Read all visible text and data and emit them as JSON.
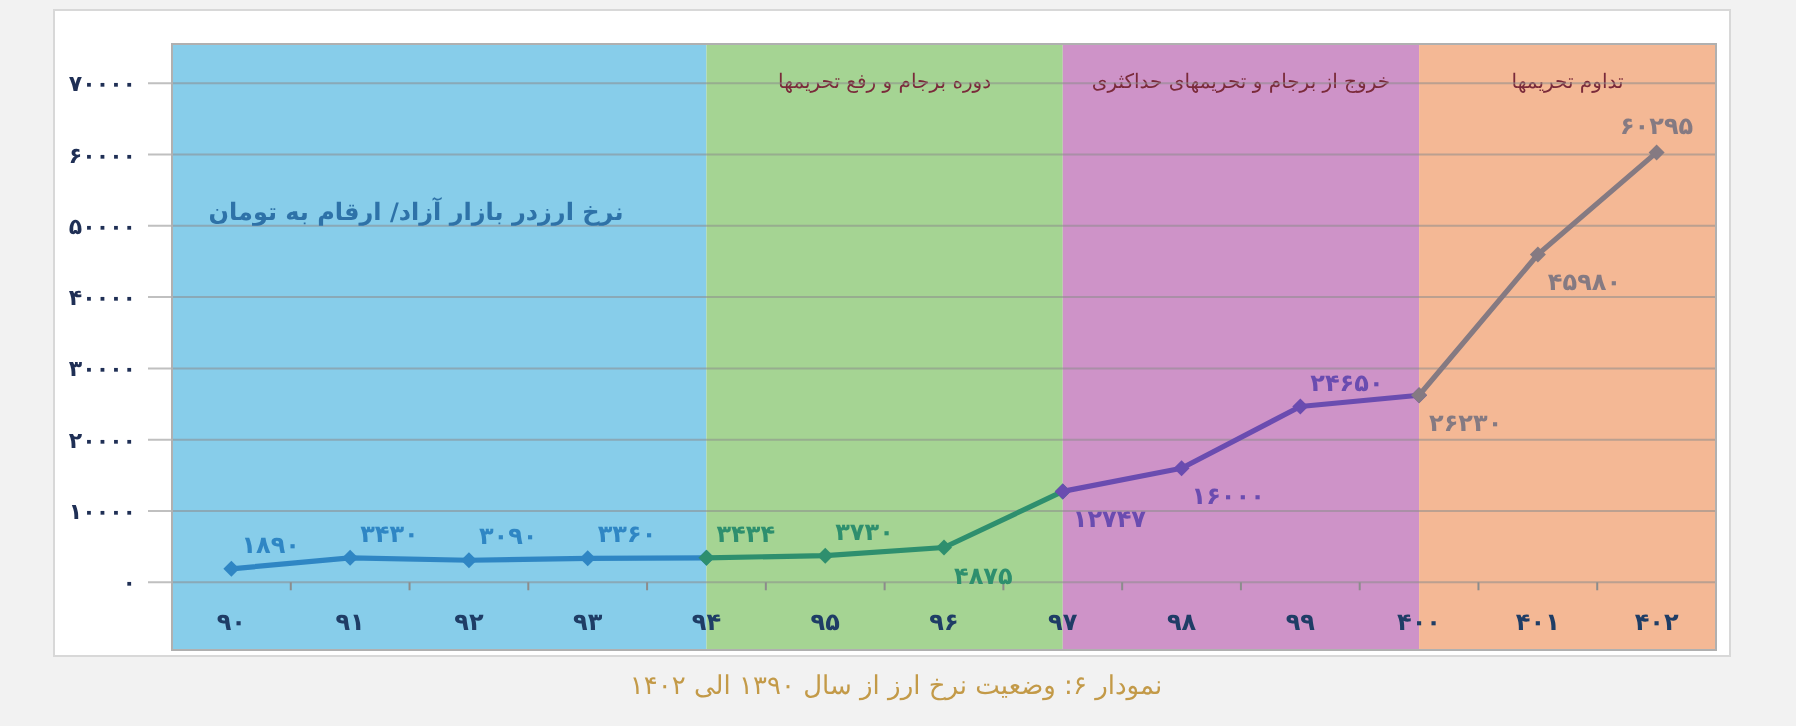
{
  "chart_data": {
    "type": "line",
    "categories": [
      "۹۰",
      "۹۱",
      "۹۲",
      "۹۳",
      "۹۴",
      "۹۵",
      "۹۶",
      "۹۷",
      "۹۸",
      "۹۹",
      "۴۰۰",
      "۴۰۱",
      "۴۰۲"
    ],
    "series": [
      {
        "color": "#2f86c4",
        "x": [
          "۹۰",
          "۹۱",
          "۹۲",
          "۹۳",
          "۹۴"
        ],
        "values": [
          1890,
          3430,
          3090,
          3360,
          3434
        ],
        "value_labels": [
          "۱۸۹۰",
          "۳۴۳۰",
          "۳۰۹۰",
          "۳۳۶۰",
          null
        ]
      },
      {
        "color": "#2e8f6e",
        "x": [
          "۹۴",
          "۹۵",
          "۹۶",
          "۹۷"
        ],
        "values": [
          3434,
          3730,
          4875,
          12747
        ],
        "value_labels": [
          "۳۴۳۴",
          "۳۷۳۰",
          "۴۸۷۵",
          null
        ]
      },
      {
        "color": "#6a4cb0",
        "x": [
          "۹۷",
          "۹۸",
          "۹۹",
          "۴۰۰"
        ],
        "values": [
          12747,
          16000,
          24650,
          26230
        ],
        "value_labels": [
          "۱۲۷۴۷",
          "۱۶۰۰۰",
          "۲۴۶۵۰",
          null
        ]
      },
      {
        "color": "#857a82",
        "x": [
          "۴۰۰",
          "۴۰۱",
          "۴۰۲"
        ],
        "values": [
          26230,
          45980,
          60295
        ],
        "value_labels": [
          "۲۶۲۳۰",
          "۴۵۹۸۰",
          "۶۰۲۹۵"
        ]
      }
    ],
    "ylim": [
      -9500,
      75500
    ],
    "yticks": [
      {
        "value": 0,
        "label": "۰"
      },
      {
        "value": 10000,
        "label": "۱۰۰۰۰"
      },
      {
        "value": 20000,
        "label": "۲۰۰۰۰"
      },
      {
        "value": 30000,
        "label": "۳۰۰۰۰"
      },
      {
        "value": 40000,
        "label": "۴۰۰۰۰"
      },
      {
        "value": 50000,
        "label": "۵۰۰۰۰"
      },
      {
        "value": 60000,
        "label": "۶۰۰۰۰"
      },
      {
        "value": 70000,
        "label": "۷۰۰۰۰"
      }
    ],
    "bands": [
      {
        "axis": "x",
        "from": "۹۰",
        "to": "۹۴",
        "color": "#87cdea"
      },
      {
        "axis": "x",
        "from": "۹۴",
        "to": "۹۷",
        "color": "#a5d493",
        "label": "دوره برجام و رفع تحریمها"
      },
      {
        "axis": "x",
        "from": "۹۷",
        "to": "۴۰۰",
        "color": "#ce93c8",
        "label": "خروج از برجام و تحریمهای حداکثری"
      },
      {
        "axis": "x",
        "from": "۴۰۰",
        "to": "۴۰۲",
        "color": "#f4b895",
        "label": "تداوم تحریمها"
      }
    ],
    "annotations": [
      "نرخ ارزدر بازار آزاد/ ارقام به تومان",
      "نمودار ۶: وضعیت نرخ ارز از سال ۱۳۹۰ الی ۱۴۰۲"
    ],
    "grid": "y",
    "marker": "diamond"
  }
}
